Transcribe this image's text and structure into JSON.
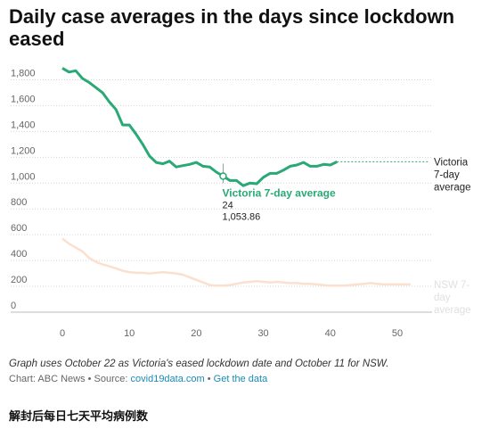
{
  "title": "Daily case averages in the days since lockdown eased",
  "note": "Graph uses October 22 as Victoria's eased lockdown date and October 11 for NSW.",
  "source": {
    "prefix": "Chart: ABC News • Source: ",
    "source_link": "covid19data.com",
    "separator": " • ",
    "data_link": "Get the data"
  },
  "caption": "解封后每日七天平均病例数",
  "chart_data": {
    "type": "line",
    "title": "Daily case averages in the days since lockdown eased",
    "xlabel": "",
    "ylabel": "",
    "xlim": [
      0,
      52
    ],
    "ylim": [
      0,
      1900
    ],
    "x_ticks": [
      0,
      10,
      20,
      30,
      40,
      50
    ],
    "y_ticks": [
      0,
      200,
      400,
      600,
      800,
      1000,
      1200,
      1400,
      1600,
      1800
    ],
    "y_tick_labels": [
      "0",
      "200",
      "400",
      "600",
      "800",
      "1,000",
      "1,200",
      "1,400",
      "1,600",
      "1,800"
    ],
    "grid": "horizontal dotted",
    "series": [
      {
        "name": "Victoria 7-day average",
        "label_lines": [
          "Victoria",
          "7-day",
          "average"
        ],
        "color": "#2aa876",
        "x": [
          0,
          1,
          2,
          3,
          4,
          5,
          6,
          7,
          8,
          9,
          10,
          11,
          12,
          13,
          14,
          15,
          16,
          17,
          18,
          19,
          20,
          21,
          22,
          23,
          24,
          25,
          26,
          27,
          28,
          29,
          30,
          31,
          32,
          33,
          34,
          35,
          36,
          37,
          38,
          39,
          40,
          41
        ],
        "y": [
          1890,
          1860,
          1870,
          1810,
          1780,
          1740,
          1700,
          1630,
          1570,
          1450,
          1450,
          1380,
          1300,
          1210,
          1160,
          1150,
          1170,
          1125,
          1135,
          1145,
          1160,
          1130,
          1125,
          1085,
          1054,
          1020,
          1020,
          980,
          1000,
          995,
          1045,
          1075,
          1075,
          1100,
          1130,
          1140,
          1160,
          1130,
          1130,
          1145,
          1140,
          1165
        ]
      },
      {
        "name": "NSW 7-day average",
        "label_lines": [
          "NSW 7-",
          "day",
          "average"
        ],
        "color": "#fbe0cf",
        "x": [
          0,
          1,
          2,
          3,
          4,
          5,
          6,
          7,
          8,
          9,
          10,
          11,
          12,
          13,
          14,
          15,
          16,
          17,
          18,
          19,
          20,
          21,
          22,
          23,
          24,
          25,
          26,
          27,
          28,
          29,
          30,
          31,
          32,
          33,
          34,
          35,
          36,
          37,
          38,
          39,
          40,
          41,
          42,
          43,
          44,
          45,
          46,
          47,
          48,
          49,
          50,
          51,
          52
        ],
        "y": [
          570,
          530,
          500,
          470,
          420,
          390,
          370,
          355,
          340,
          320,
          310,
          305,
          305,
          300,
          305,
          310,
          305,
          300,
          290,
          270,
          250,
          230,
          210,
          205,
          205,
          210,
          220,
          230,
          235,
          240,
          235,
          230,
          235,
          230,
          225,
          225,
          220,
          220,
          215,
          210,
          205,
          205,
          205,
          210,
          215,
          220,
          225,
          220,
          215,
          215,
          215,
          215,
          215
        ]
      }
    ],
    "extension": {
      "series": "Victoria 7-day average",
      "from_x": 41,
      "to_x": 52,
      "y": 1165,
      "style": "dotted"
    },
    "tooltip": {
      "title": "Victoria 7-day average",
      "x": 24,
      "value": "1,053.86"
    }
  }
}
